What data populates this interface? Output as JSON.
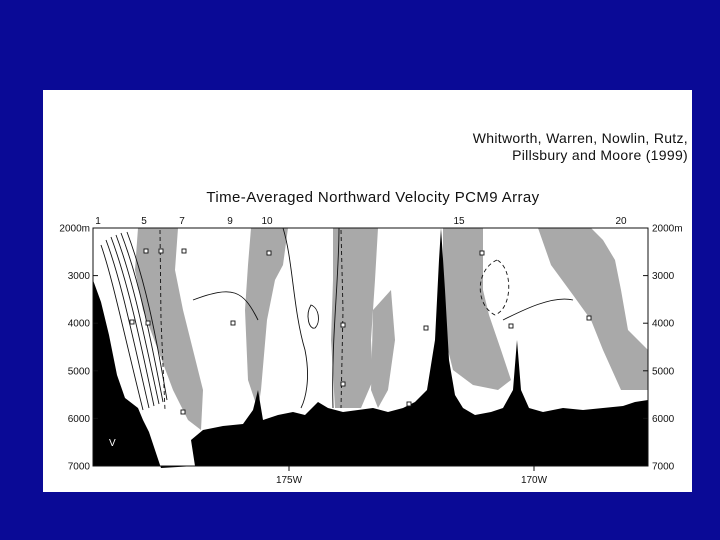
{
  "slide": {
    "background": "#0a0a96",
    "panel_background": "#ffffff"
  },
  "citation": {
    "line1": "Whitworth, Warren, Nowlin, Rutz,",
    "line2": "Pillsbury and Moore (1999)"
  },
  "chart_data": {
    "type": "heatmap",
    "title": "Time-Averaged Northward Velocity PCM9 Array",
    "xlabel": "",
    "ylabel": "",
    "mooring_labels": [
      "1",
      "5",
      "7",
      "9",
      "10",
      "15",
      "20"
    ],
    "longitude_labels": [
      "175W",
      "170W"
    ],
    "depth_labels": [
      "2000m",
      "3000",
      "4000",
      "5000",
      "6000",
      "7000"
    ],
    "depth_values": [
      2000,
      3000,
      4000,
      5000,
      6000,
      7000
    ],
    "ylim": [
      7000,
      2000
    ],
    "velocity_symbol": "V",
    "colors": {
      "shaded_region": "#a9a9a9",
      "unshaded_region": "#ffffff",
      "bathymetry": "#000000"
    },
    "grid": false
  }
}
